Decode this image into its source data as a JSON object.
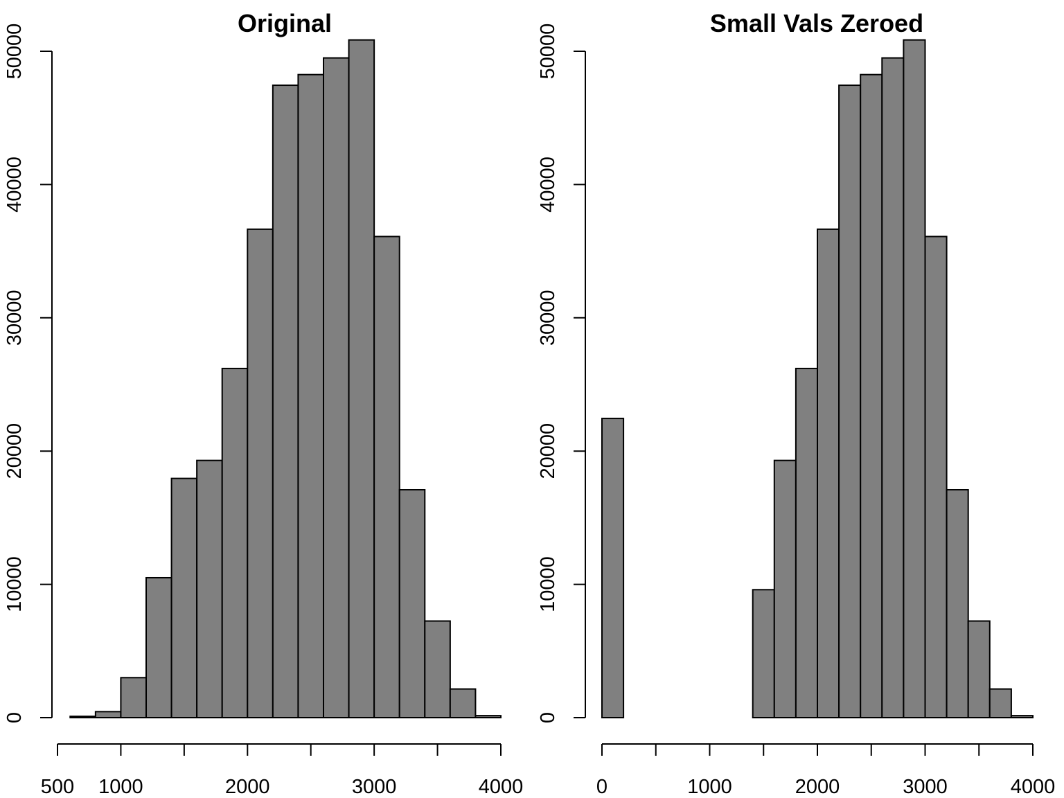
{
  "chart_data": [
    {
      "type": "bar",
      "title": "Original",
      "xlabel": "",
      "ylabel": "",
      "bin_edges": [
        600,
        800,
        1000,
        1200,
        1400,
        1600,
        1800,
        2000,
        2200,
        2400,
        2600,
        2800,
        3000,
        3200,
        3400,
        3600,
        3800,
        4000
      ],
      "values": [
        100,
        450,
        3000,
        10500,
        17950,
        19300,
        26200,
        36650,
        47450,
        48250,
        49500,
        50850,
        36100,
        17100,
        7250,
        2150,
        150
      ],
      "xlim": [
        500,
        4000
      ],
      "ylim": [
        0,
        50000
      ],
      "x_ticks": [
        500,
        1000,
        1500,
        2000,
        2500,
        3000,
        3500,
        4000
      ],
      "x_tick_labels": [
        "500",
        "1000",
        "",
        "2000",
        "",
        "3000",
        "",
        "4000"
      ],
      "y_ticks": [
        0,
        10000,
        20000,
        30000,
        40000,
        50000
      ],
      "y_tick_labels": [
        "0",
        "10000",
        "20000",
        "30000",
        "40000",
        "50000"
      ]
    },
    {
      "type": "bar",
      "title": "Small Vals Zeroed",
      "xlabel": "",
      "ylabel": "",
      "bin_edges": [
        0,
        200,
        400,
        600,
        800,
        1000,
        1200,
        1400,
        1600,
        1800,
        2000,
        2200,
        2400,
        2600,
        2800,
        3000,
        3200,
        3400,
        3600,
        3800,
        4000
      ],
      "values": [
        22450,
        0,
        0,
        0,
        0,
        0,
        0,
        9600,
        19300,
        26200,
        36650,
        47450,
        48250,
        49500,
        50850,
        36100,
        17100,
        7250,
        2150,
        150
      ],
      "xlim": [
        0,
        4000
      ],
      "ylim": [
        0,
        50000
      ],
      "x_ticks": [
        0,
        500,
        1000,
        1500,
        2000,
        2500,
        3000,
        3500,
        4000
      ],
      "x_tick_labels": [
        "0",
        "",
        "1000",
        "",
        "2000",
        "",
        "3000",
        "",
        "4000"
      ],
      "y_ticks": [
        0,
        10000,
        20000,
        30000,
        40000,
        50000
      ],
      "y_tick_labels": [
        "0",
        "10000",
        "20000",
        "30000",
        "40000",
        "50000"
      ]
    }
  ]
}
